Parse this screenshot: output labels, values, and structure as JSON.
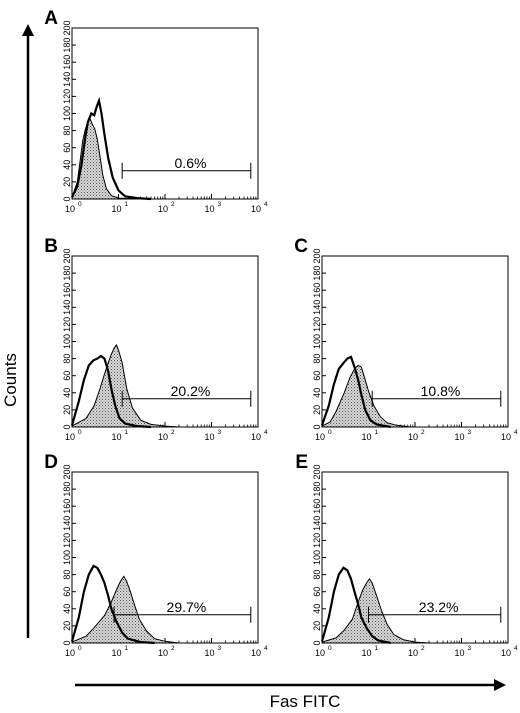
{
  "chart_data": {
    "type": "histogram",
    "x_axis_label": "Fas FITC",
    "y_axis_label": "Counts",
    "x_scale": "log",
    "xlim": [
      1,
      10000
    ],
    "x_tick_labels": [
      "10",
      "10",
      "10",
      "10",
      "10"
    ],
    "x_tick_exponents": [
      "0",
      "1",
      "2",
      "3",
      "4"
    ],
    "ylim": [
      0,
      200
    ],
    "y_ticks": [
      "0",
      "20",
      "40",
      "60",
      "80",
      "100",
      "120",
      "140",
      "160",
      "180",
      "200"
    ],
    "panels": [
      {
        "label": "A",
        "gate": {
          "from": 12,
          "to": 7000,
          "percent": "0.6%"
        },
        "control": {
          "curve": [
            [
              1,
              2
            ],
            [
              1.3,
              20
            ],
            [
              1.5,
              45
            ],
            [
              1.7,
              68
            ],
            [
              1.9,
              80
            ],
            [
              2.1,
              88
            ],
            [
              2.4,
              95
            ],
            [
              2.7,
              88
            ],
            [
              3.1,
              82
            ],
            [
              3.5,
              70
            ],
            [
              4,
              50
            ],
            [
              4.6,
              28
            ],
            [
              5.5,
              12
            ],
            [
              7,
              4
            ],
            [
              10,
              1
            ],
            [
              30,
              0
            ]
          ]
        },
        "stained": {
          "curve": [
            [
              1,
              2
            ],
            [
              1.3,
              15
            ],
            [
              1.6,
              40
            ],
            [
              1.9,
              70
            ],
            [
              2.2,
              90
            ],
            [
              2.6,
              100
            ],
            [
              3,
              98
            ],
            [
              3.4,
              108
            ],
            [
              3.8,
              115
            ],
            [
              4.3,
              100
            ],
            [
              5,
              75
            ],
            [
              6,
              48
            ],
            [
              7.5,
              25
            ],
            [
              10,
              10
            ],
            [
              14,
              3
            ],
            [
              25,
              1
            ],
            [
              50,
              0
            ]
          ]
        }
      },
      {
        "label": "B",
        "gate": {
          "from": 12,
          "to": 7000,
          "percent": "20.2%"
        },
        "control": {
          "curve": [
            [
              1,
              2
            ],
            [
              1.4,
              30
            ],
            [
              1.8,
              55
            ],
            [
              2.3,
              72
            ],
            [
              2.9,
              78
            ],
            [
              3.5,
              80
            ],
            [
              4.2,
              83
            ],
            [
              5,
              80
            ],
            [
              6,
              65
            ],
            [
              7,
              45
            ],
            [
              8.5,
              25
            ],
            [
              10.5,
              10
            ],
            [
              14,
              4
            ],
            [
              25,
              1
            ],
            [
              50,
              0
            ]
          ]
        },
        "stained": {
          "curve": [
            [
              1,
              1
            ],
            [
              2,
              10
            ],
            [
              3,
              25
            ],
            [
              4,
              45
            ],
            [
              5,
              62
            ],
            [
              6,
              75
            ],
            [
              7,
              85
            ],
            [
              8,
              92
            ],
            [
              9,
              96
            ],
            [
              10,
              90
            ],
            [
              12,
              75
            ],
            [
              15,
              45
            ],
            [
              20,
              22
            ],
            [
              30,
              8
            ],
            [
              50,
              3
            ],
            [
              100,
              1
            ],
            [
              200,
              0
            ]
          ]
        }
      },
      {
        "label": "C",
        "gate": {
          "from": 12,
          "to": 7000,
          "percent": "10.8%"
        },
        "control": {
          "curve": [
            [
              1,
              2
            ],
            [
              1.4,
              25
            ],
            [
              1.8,
              50
            ],
            [
              2.3,
              68
            ],
            [
              2.9,
              75
            ],
            [
              3.5,
              80
            ],
            [
              4.2,
              82
            ],
            [
              5,
              70
            ],
            [
              6,
              55
            ],
            [
              7,
              38
            ],
            [
              8.5,
              20
            ],
            [
              11,
              8
            ],
            [
              15,
              3
            ],
            [
              30,
              0
            ]
          ]
        },
        "stained": {
          "curve": [
            [
              1,
              1
            ],
            [
              1.5,
              6
            ],
            [
              2,
              18
            ],
            [
              3,
              40
            ],
            [
              4,
              58
            ],
            [
              5,
              68
            ],
            [
              6,
              72
            ],
            [
              7,
              70
            ],
            [
              8,
              60
            ],
            [
              10,
              42
            ],
            [
              13,
              25
            ],
            [
              18,
              12
            ],
            [
              25,
              5
            ],
            [
              40,
              2
            ],
            [
              80,
              0
            ]
          ]
        }
      },
      {
        "label": "D",
        "gate": {
          "from": 8,
          "to": 7000,
          "percent": "29.7%"
        },
        "control": {
          "curve": [
            [
              1,
              2
            ],
            [
              1.4,
              30
            ],
            [
              1.8,
              60
            ],
            [
              2.3,
              80
            ],
            [
              2.9,
              90
            ],
            [
              3.5,
              88
            ],
            [
              4.2,
              80
            ],
            [
              5,
              70
            ],
            [
              6,
              55
            ],
            [
              7,
              40
            ],
            [
              9,
              25
            ],
            [
              12,
              12
            ],
            [
              16,
              5
            ],
            [
              30,
              1
            ],
            [
              60,
              0
            ]
          ]
        },
        "stained": {
          "curve": [
            [
              1,
              1
            ],
            [
              2,
              8
            ],
            [
              3,
              18
            ],
            [
              5,
              32
            ],
            [
              7,
              48
            ],
            [
              9,
              62
            ],
            [
              11,
              72
            ],
            [
              13,
              78
            ],
            [
              15,
              72
            ],
            [
              18,
              60
            ],
            [
              22,
              45
            ],
            [
              28,
              28
            ],
            [
              40,
              14
            ],
            [
              60,
              5
            ],
            [
              100,
              2
            ],
            [
              200,
              0
            ]
          ]
        }
      },
      {
        "label": "E",
        "gate": {
          "from": 10,
          "to": 7000,
          "percent": "23.2%"
        },
        "control": {
          "curve": [
            [
              1,
              2
            ],
            [
              1.4,
              30
            ],
            [
              1.8,
              60
            ],
            [
              2.3,
              80
            ],
            [
              2.9,
              88
            ],
            [
              3.5,
              85
            ],
            [
              4.2,
              75
            ],
            [
              5,
              60
            ],
            [
              6,
              45
            ],
            [
              7,
              30
            ],
            [
              9,
              18
            ],
            [
              12,
              8
            ],
            [
              16,
              3
            ],
            [
              30,
              0
            ]
          ]
        },
        "stained": {
          "curve": [
            [
              1,
              1
            ],
            [
              2,
              6
            ],
            [
              3,
              15
            ],
            [
              4.5,
              28
            ],
            [
              6,
              48
            ],
            [
              7.5,
              62
            ],
            [
              9,
              70
            ],
            [
              10.5,
              75
            ],
            [
              12,
              70
            ],
            [
              15,
              55
            ],
            [
              19,
              38
            ],
            [
              25,
              22
            ],
            [
              35,
              10
            ],
            [
              55,
              4
            ],
            [
              100,
              1
            ],
            [
              200,
              0
            ]
          ]
        }
      }
    ]
  }
}
